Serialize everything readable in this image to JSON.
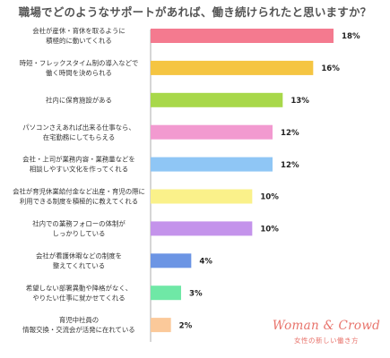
{
  "chart_data": {
    "type": "bar",
    "orientation": "horizontal",
    "title": "職場でどのようなサポートがあれば、働き続けられたと思いますか？",
    "categories": [
      [
        "会社が産休・育休を取るように",
        "積極的に動いてくれる"
      ],
      [
        "時短・フレックスタイム制の導入などで",
        "働く時間を決められる"
      ],
      [
        "社内に保育施設がある"
      ],
      [
        "パソコンさえあれば出来る仕事なら、",
        "在宅勤務にしてもらえる"
      ],
      [
        "会社・上司が業務内容・業務量などを",
        "相談しやすい文化を作ってくれる"
      ],
      [
        "会社が育児休業給付金など出産・育児の際に",
        "利用できる制度を積極的に教えてくれる"
      ],
      [
        "社内での業務フォローの体制が",
        "しっかりしている"
      ],
      [
        "会社が看護休暇などの制度を",
        "整えてくれている"
      ],
      [
        "希望しない部署異動や降格がなく、",
        "やりたい仕事に就かせてくれる"
      ],
      [
        "育児中社員の",
        "情報交換・交流会が活発に在れている"
      ]
    ],
    "values": [
      18,
      16,
      13,
      12,
      12,
      10,
      10,
      4,
      3,
      2
    ],
    "value_labels": [
      "18%",
      "16%",
      "13%",
      "12%",
      "12%",
      "10%",
      "10%",
      "4%",
      "3%",
      "2%"
    ],
    "colors": [
      "#f47a8f",
      "#f5c542",
      "#a8d84a",
      "#f29ad0",
      "#8fc6f5",
      "#faf18a",
      "#c493eb",
      "#6c95e4",
      "#6fe8a6",
      "#fbc99a"
    ],
    "xlim": [
      0,
      18
    ],
    "grid": false,
    "legend": "none"
  },
  "brand": {
    "name": "Woman & Crowd",
    "tagline": "女性の新しい働き方"
  }
}
